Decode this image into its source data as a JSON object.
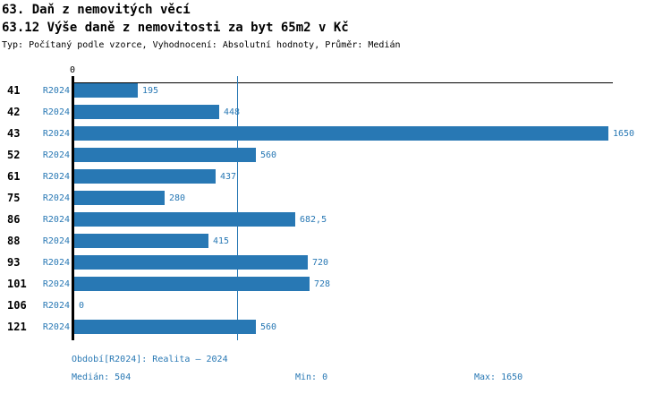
{
  "header": {
    "title": "63. Daň z nemovitých věcí",
    "subtitle": "63.12 Výše daně z nemovitosti za byt 65m2 v Kč",
    "meta": "Typ: Počítaný podle vzorce, Vyhodnocení: Absolutní hodnoty, Průměr: Medián"
  },
  "colors": {
    "bar_blue": "#2878B4",
    "axis_black": "#000000",
    "background": "#ffffff"
  },
  "chart_data": {
    "type": "bar",
    "orientation": "horizontal",
    "title": "63.12 Výše daně z nemovitosti za byt 65m2 v Kč",
    "series_label": "R2024",
    "categories": [
      "41",
      "42",
      "43",
      "52",
      "61",
      "75",
      "86",
      "88",
      "93",
      "101",
      "106",
      "121"
    ],
    "values": [
      195,
      448,
      1650,
      560,
      437,
      280,
      682.5,
      415,
      720,
      728,
      0,
      560
    ],
    "value_labels": [
      "195",
      "448",
      "1650",
      "560",
      "437",
      "280",
      "682,5",
      "415",
      "720",
      "728",
      "0",
      "560"
    ],
    "xlim": [
      0,
      1650
    ],
    "x_axis_zero_tick": "0",
    "median": 504,
    "min": 0,
    "max": 1650,
    "grid": false,
    "median_line": true,
    "legend_position": "none"
  },
  "footer": {
    "period": "Období[R2024]: Realita – 2024",
    "median": "Medián: 504",
    "min": "Min: 0",
    "max": "Max: 1650"
  }
}
